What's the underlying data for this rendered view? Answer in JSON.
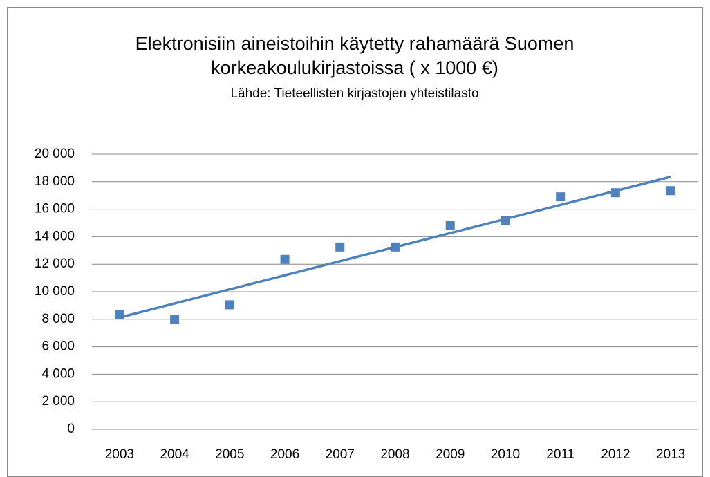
{
  "chart_data": {
    "type": "scatter",
    "title": "Elektronisiin aineistoihin käytetty rahamäärä Suomen korkeakoulukirjastoissa ( x 1000 €)",
    "subtitle": "Lähde: Tieteellisten kirjastojen yhteistilasto",
    "categories": [
      "2003",
      "2004",
      "2005",
      "2006",
      "2007",
      "2008",
      "2009",
      "2010",
      "2011",
      "2012",
      "2013"
    ],
    "values": [
      8350,
      8000,
      9050,
      12350,
      13250,
      13250,
      14800,
      15150,
      16900,
      17200,
      17350
    ],
    "color": "#4f81bd",
    "trendline": true,
    "ylim": [
      0,
      20000
    ],
    "yticks": [
      0,
      {
        "value": 2000,
        "label": "2 000"
      },
      {
        "value": 4000,
        "label": "4 000"
      },
      {
        "value": 6000,
        "label": "6 000"
      },
      {
        "value": 8000,
        "label": "8 000"
      },
      {
        "value": 10000,
        "label": "10 000"
      },
      {
        "value": 12000,
        "label": "12 000"
      },
      {
        "value": 14000,
        "label": "14 000"
      },
      {
        "value": 16000,
        "label": "16 000"
      },
      {
        "value": 18000,
        "label": "18 000"
      },
      {
        "value": 20000,
        "label": "20 000"
      }
    ],
    "grid": true
  }
}
